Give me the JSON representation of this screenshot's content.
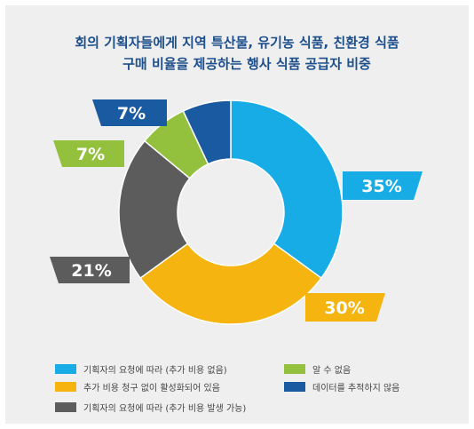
{
  "title_lines": [
    "회의 기획자들에게 지역 특산물, 유기농 식품, 친환경 식품",
    "구매 비율을 제공하는 행사 식품 공급자 비중"
  ],
  "chart_data": {
    "type": "pie",
    "style": "donut",
    "legend_position": "bottom",
    "slices": [
      {
        "label": "기획자의 요청에 따라 (추가 비용 없음)",
        "value": 35,
        "display": "35%",
        "color": "#17ace5"
      },
      {
        "label": "추가 비용 청구 없이 활성화되어 있음",
        "value": 30,
        "display": "30%",
        "color": "#f5b40f"
      },
      {
        "label": "기획자의 요청에 따라 (추가 비용 발생 가능)",
        "value": 21,
        "display": "21%",
        "color": "#5c5c5c"
      },
      {
        "label": "알 수 없음",
        "value": 7,
        "display": "7%",
        "color": "#93c13e"
      },
      {
        "label": "데이터를 추적하지 않음",
        "value": 7,
        "display": "7%",
        "color": "#1a5aa0"
      }
    ]
  },
  "legend_order": [
    0,
    3,
    1,
    4,
    2
  ]
}
